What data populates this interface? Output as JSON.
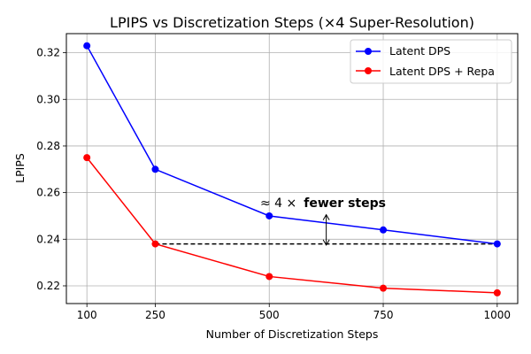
{
  "chart_data": {
    "type": "line",
    "title": "LPIPS vs Discretization Steps (×4 Super-Resolution)",
    "xlabel": "Number of Discretization Steps",
    "ylabel": "LPIPS",
    "x": [
      100,
      250,
      500,
      750,
      1000
    ],
    "xlim": [
      55,
      1045
    ],
    "ylim": [
      0.2124,
      0.3282
    ],
    "xticks": [
      100,
      250,
      500,
      750,
      1000
    ],
    "yticks": [
      0.22,
      0.24,
      0.26,
      0.28,
      0.3,
      0.32
    ],
    "ytick_labels": [
      "0.22",
      "0.24",
      "0.26",
      "0.28",
      "0.30",
      "0.32"
    ],
    "grid": true,
    "legend_position": "top-right",
    "series": [
      {
        "name": "Latent DPS",
        "color": "#0000ff",
        "values": [
          0.323,
          0.27,
          0.25,
          0.244,
          0.238
        ]
      },
      {
        "name": "Latent DPS + Repa",
        "color": "#ff0000",
        "values": [
          0.275,
          0.238,
          0.224,
          0.219,
          0.217
        ]
      }
    ],
    "reference_line": {
      "y": 0.238,
      "x_from": 250,
      "x_to": 1000,
      "style": "dashed",
      "color": "#000000"
    },
    "annotation": {
      "text_prefix": "≈ 4 ×",
      "text_bold": "fewer steps",
      "arrow_x": 625,
      "arrow_y_from": 0.2505,
      "arrow_y_to": 0.2375
    }
  }
}
